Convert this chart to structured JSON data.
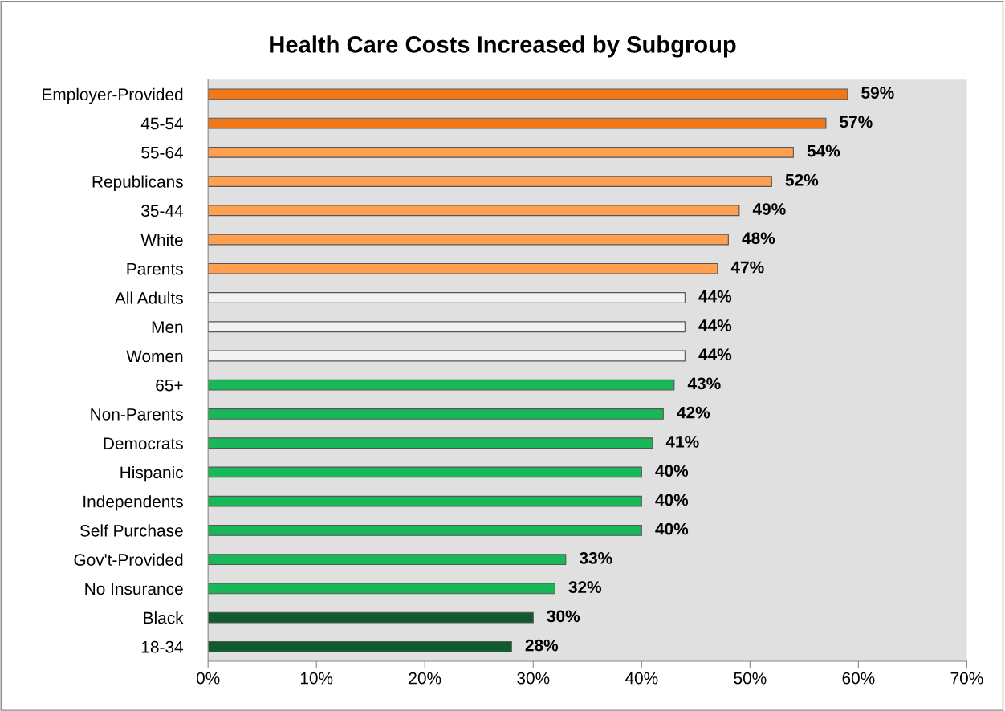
{
  "chart_data": {
    "type": "bar",
    "orientation": "horizontal",
    "title": "Health Care Costs Increased by Subgroup",
    "categories": [
      "Employer-Provided",
      "45-54",
      "55-64",
      "Republicans",
      "35-44",
      "White",
      "Parents",
      "All Adults",
      "Men",
      "Women",
      "65+",
      "Non-Parents",
      "Democrats",
      "Hispanic",
      "Independents",
      "Self Purchase",
      "Gov't-Provided",
      "No Insurance",
      "Black",
      "18-34"
    ],
    "values": [
      59,
      57,
      54,
      52,
      49,
      48,
      47,
      44,
      44,
      44,
      43,
      42,
      41,
      40,
      40,
      40,
      33,
      32,
      30,
      28
    ],
    "value_labels": [
      "59%",
      "57%",
      "54%",
      "52%",
      "49%",
      "48%",
      "47%",
      "44%",
      "44%",
      "44%",
      "43%",
      "42%",
      "41%",
      "40%",
      "40%",
      "40%",
      "33%",
      "32%",
      "30%",
      "28%"
    ],
    "colors": [
      "#f07818",
      "#f07818",
      "#ffa050",
      "#ffa050",
      "#ffa050",
      "#ffa050",
      "#ffa050",
      "#f2f2f2",
      "#f2f2f2",
      "#f2f2f2",
      "#18b858",
      "#18b858",
      "#18b858",
      "#18b858",
      "#18b858",
      "#18b858",
      "#18b858",
      "#18b858",
      "#105a30",
      "#105a30"
    ],
    "xlim": [
      0,
      70
    ],
    "xticks": [
      {
        "value": 0,
        "label": "0%"
      },
      {
        "value": 10,
        "label": "10%"
      },
      {
        "value": 20,
        "label": "20%"
      },
      {
        "value": 30,
        "label": "30%"
      },
      {
        "value": 40,
        "label": "40%"
      },
      {
        "value": 50,
        "label": "50%"
      },
      {
        "value": 60,
        "label": "60%"
      },
      {
        "value": 70,
        "label": "70%"
      }
    ],
    "grid": false,
    "legend": false
  }
}
